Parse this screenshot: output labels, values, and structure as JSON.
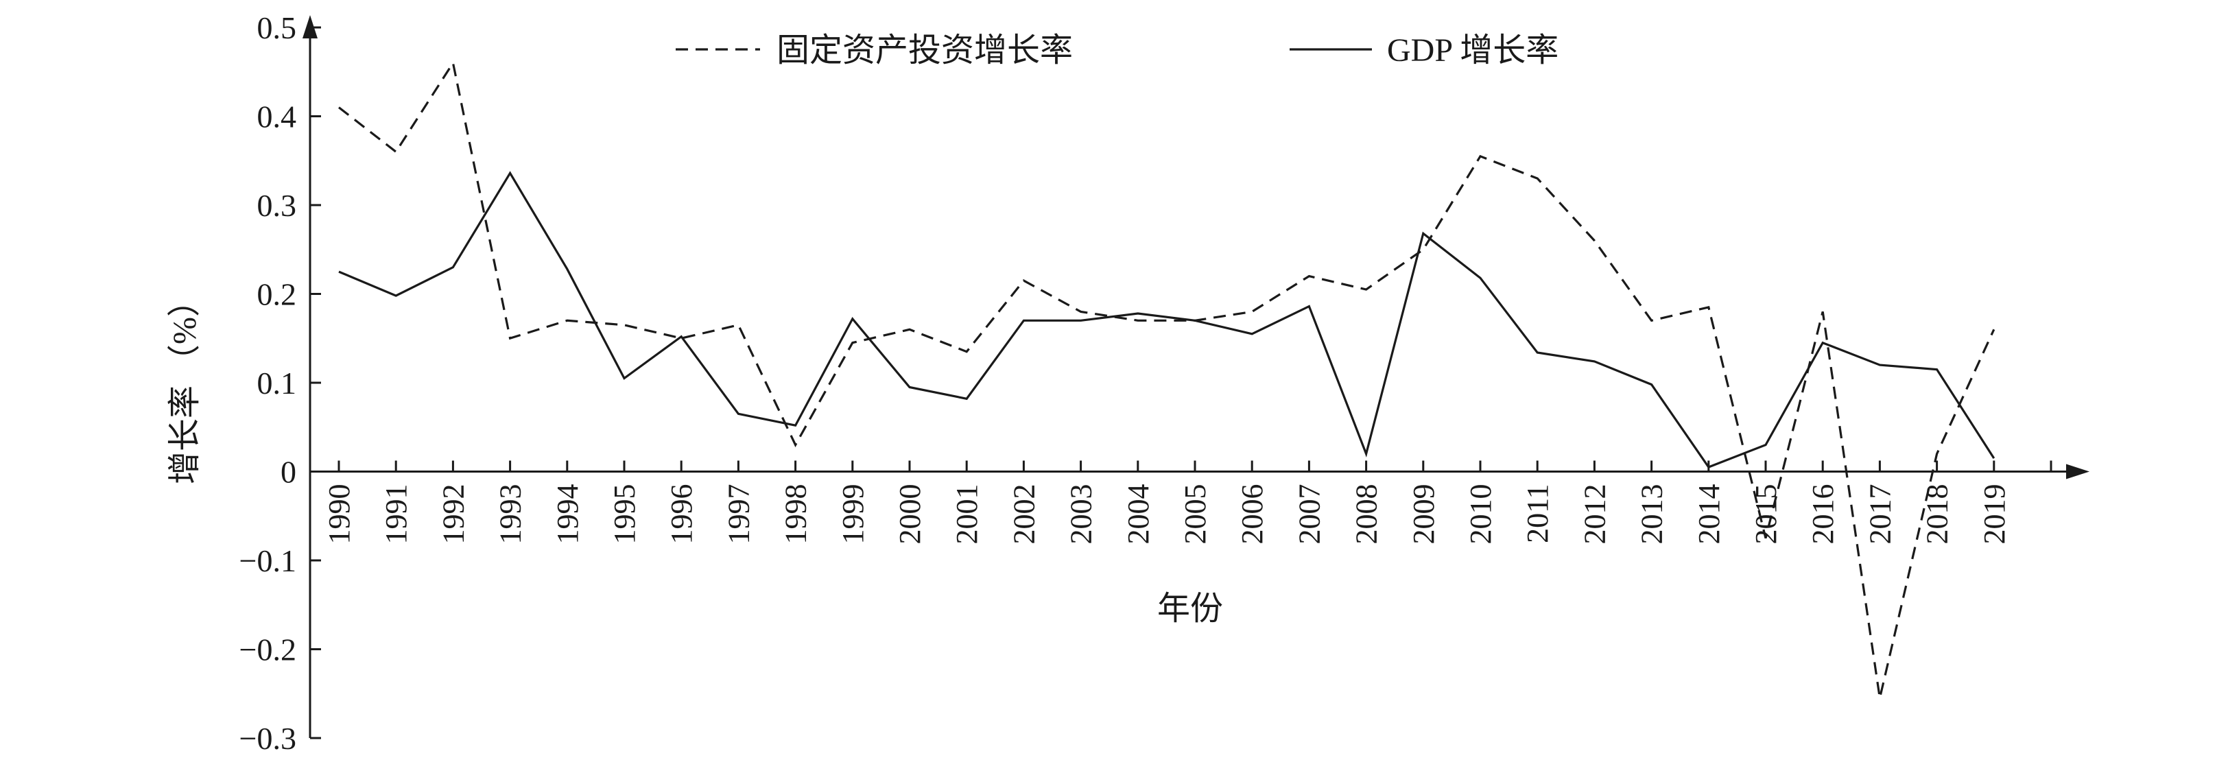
{
  "chart_data": {
    "type": "line",
    "title": "",
    "xlabel": "年份",
    "ylabel": "增长率 （%）",
    "ylim": [
      -0.3,
      0.5
    ],
    "yticks": [
      -0.3,
      -0.2,
      -0.1,
      0,
      0.1,
      0.2,
      0.3,
      0.4,
      0.5
    ],
    "ytick_labels": [
      "−0.3",
      "−0.2",
      "−0.1",
      "0",
      "0.1",
      "0.2",
      "0.3",
      "0.4",
      "0.5"
    ],
    "grid": false,
    "legend_position": "top-center",
    "x": [
      "1990",
      "1991",
      "1992",
      "1993",
      "1994",
      "1995",
      "1996",
      "1997",
      "1998",
      "1999",
      "2000",
      "2001",
      "2002",
      "2003",
      "2004",
      "2005",
      "2006",
      "2007",
      "2008",
      "2009",
      "2010",
      "2011",
      "2012",
      "2013",
      "2014",
      "2015",
      "2016",
      "2017",
      "2018",
      "2019"
    ],
    "series": [
      {
        "name": "固定资产投资增长率",
        "style": "dashed",
        "color": "#1a1a1a",
        "values": [
          0.41,
          0.36,
          0.46,
          0.15,
          0.17,
          0.165,
          0.15,
          0.165,
          0.03,
          0.145,
          0.16,
          0.135,
          0.215,
          0.18,
          0.17,
          0.17,
          0.18,
          0.22,
          0.205,
          0.25,
          0.355,
          0.33,
          0.26,
          0.17,
          0.185,
          -0.075,
          0.18,
          -0.255,
          0.02,
          0.16
        ]
      },
      {
        "name": "GDP 增长率",
        "style": "solid",
        "color": "#1a1a1a",
        "values": [
          0.225,
          0.198,
          0.23,
          0.336,
          0.228,
          0.105,
          0.152,
          0.065,
          0.052,
          0.172,
          0.095,
          0.082,
          0.17,
          0.17,
          0.178,
          0.17,
          0.155,
          0.186,
          0.02,
          0.268,
          0.218,
          0.134,
          0.124,
          0.098,
          0.005,
          0.03,
          0.145,
          0.12,
          0.115,
          0.015
        ]
      }
    ]
  }
}
